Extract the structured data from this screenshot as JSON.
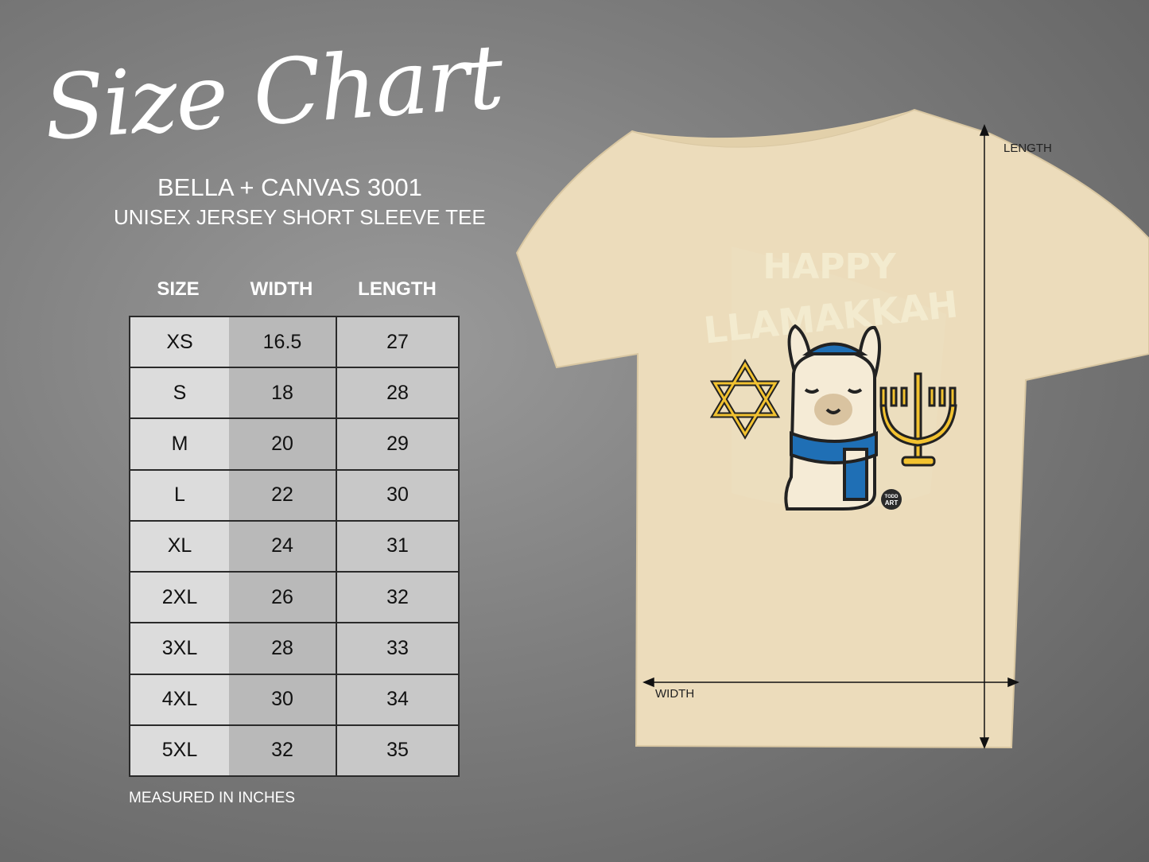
{
  "header": {
    "title": "Size Chart",
    "brand": "BELLA + CANVAS 3001",
    "subtitle": "UNISEX JERSEY SHORT SLEEVE TEE"
  },
  "table": {
    "columns": [
      "SIZE",
      "WIDTH",
      "LENGTH"
    ],
    "rows": [
      [
        "XS",
        "16.5",
        "27"
      ],
      [
        "S",
        "18",
        "28"
      ],
      [
        "M",
        "20",
        "29"
      ],
      [
        "L",
        "22",
        "30"
      ],
      [
        "XL",
        "24",
        "31"
      ],
      [
        "2XL",
        "26",
        "32"
      ],
      [
        "3XL",
        "28",
        "33"
      ],
      [
        "4XL",
        "30",
        "34"
      ],
      [
        "5XL",
        "32",
        "35"
      ]
    ],
    "note": "MEASURED IN INCHES"
  },
  "shirt": {
    "color": "#ecdcbb",
    "print_text": [
      "HAPPY",
      "LLAMAKKAH"
    ],
    "logo_text": [
      "TODD",
      "ART"
    ],
    "length_label": "LENGTH",
    "width_label": "WIDTH"
  },
  "colors": {
    "scarf": "#1f6fb5",
    "gold": "#f2c230"
  }
}
